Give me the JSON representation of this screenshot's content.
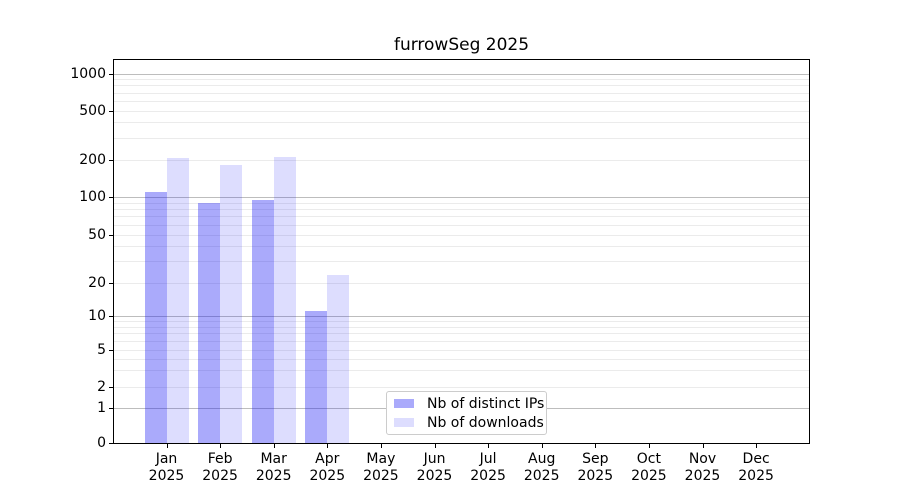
{
  "title": "furrowSeg 2025",
  "legend": {
    "items": [
      {
        "label": "Nb of distinct IPs",
        "fill": "rgba(20,20,245,0.36)"
      },
      {
        "label": "Nb of downloads",
        "fill": "rgba(20,20,245,0.145)"
      }
    ]
  },
  "colors": {
    "bar_distinct_ips": "rgba(20,20,245,0.36)",
    "bar_downloads": "rgba(20,20,245,0.145)",
    "grid_major": "#bdbdbd",
    "grid_minor": "#ebebeb",
    "spine": "#000000",
    "background": "#ffffff"
  },
  "chart_data": {
    "type": "bar",
    "title": "furrowSeg 2025",
    "categories": [
      "Jan 2025",
      "Feb 2025",
      "Mar 2025",
      "Apr 2025",
      "May 2025",
      "Jun 2025",
      "Jul 2025",
      "Aug 2025",
      "Sep 2025",
      "Oct 2025",
      "Nov 2025",
      "Dec 2025"
    ],
    "series": [
      {
        "name": "Nb of distinct IPs",
        "values": [
          110,
          89,
          95,
          11,
          0,
          0,
          0,
          0,
          0,
          0,
          0,
          0
        ]
      },
      {
        "name": "Nb of downloads",
        "values": [
          205,
          181,
          211,
          23,
          0,
          0,
          0,
          0,
          0,
          0,
          0,
          0
        ]
      }
    ],
    "xlabel": "",
    "ylabel": "",
    "yscale": "symlog-like",
    "ylim": [
      0,
      1400
    ],
    "ytick_values": [
      0,
      1,
      2,
      5,
      10,
      20,
      50,
      100,
      200,
      500,
      1000
    ],
    "ytick_labels": [
      "0",
      "1",
      "2",
      "5",
      "10",
      "20",
      "50",
      "100",
      "200",
      "500",
      "1000"
    ],
    "grid": "horizontal",
    "legend_position": "lower-center-inside"
  }
}
